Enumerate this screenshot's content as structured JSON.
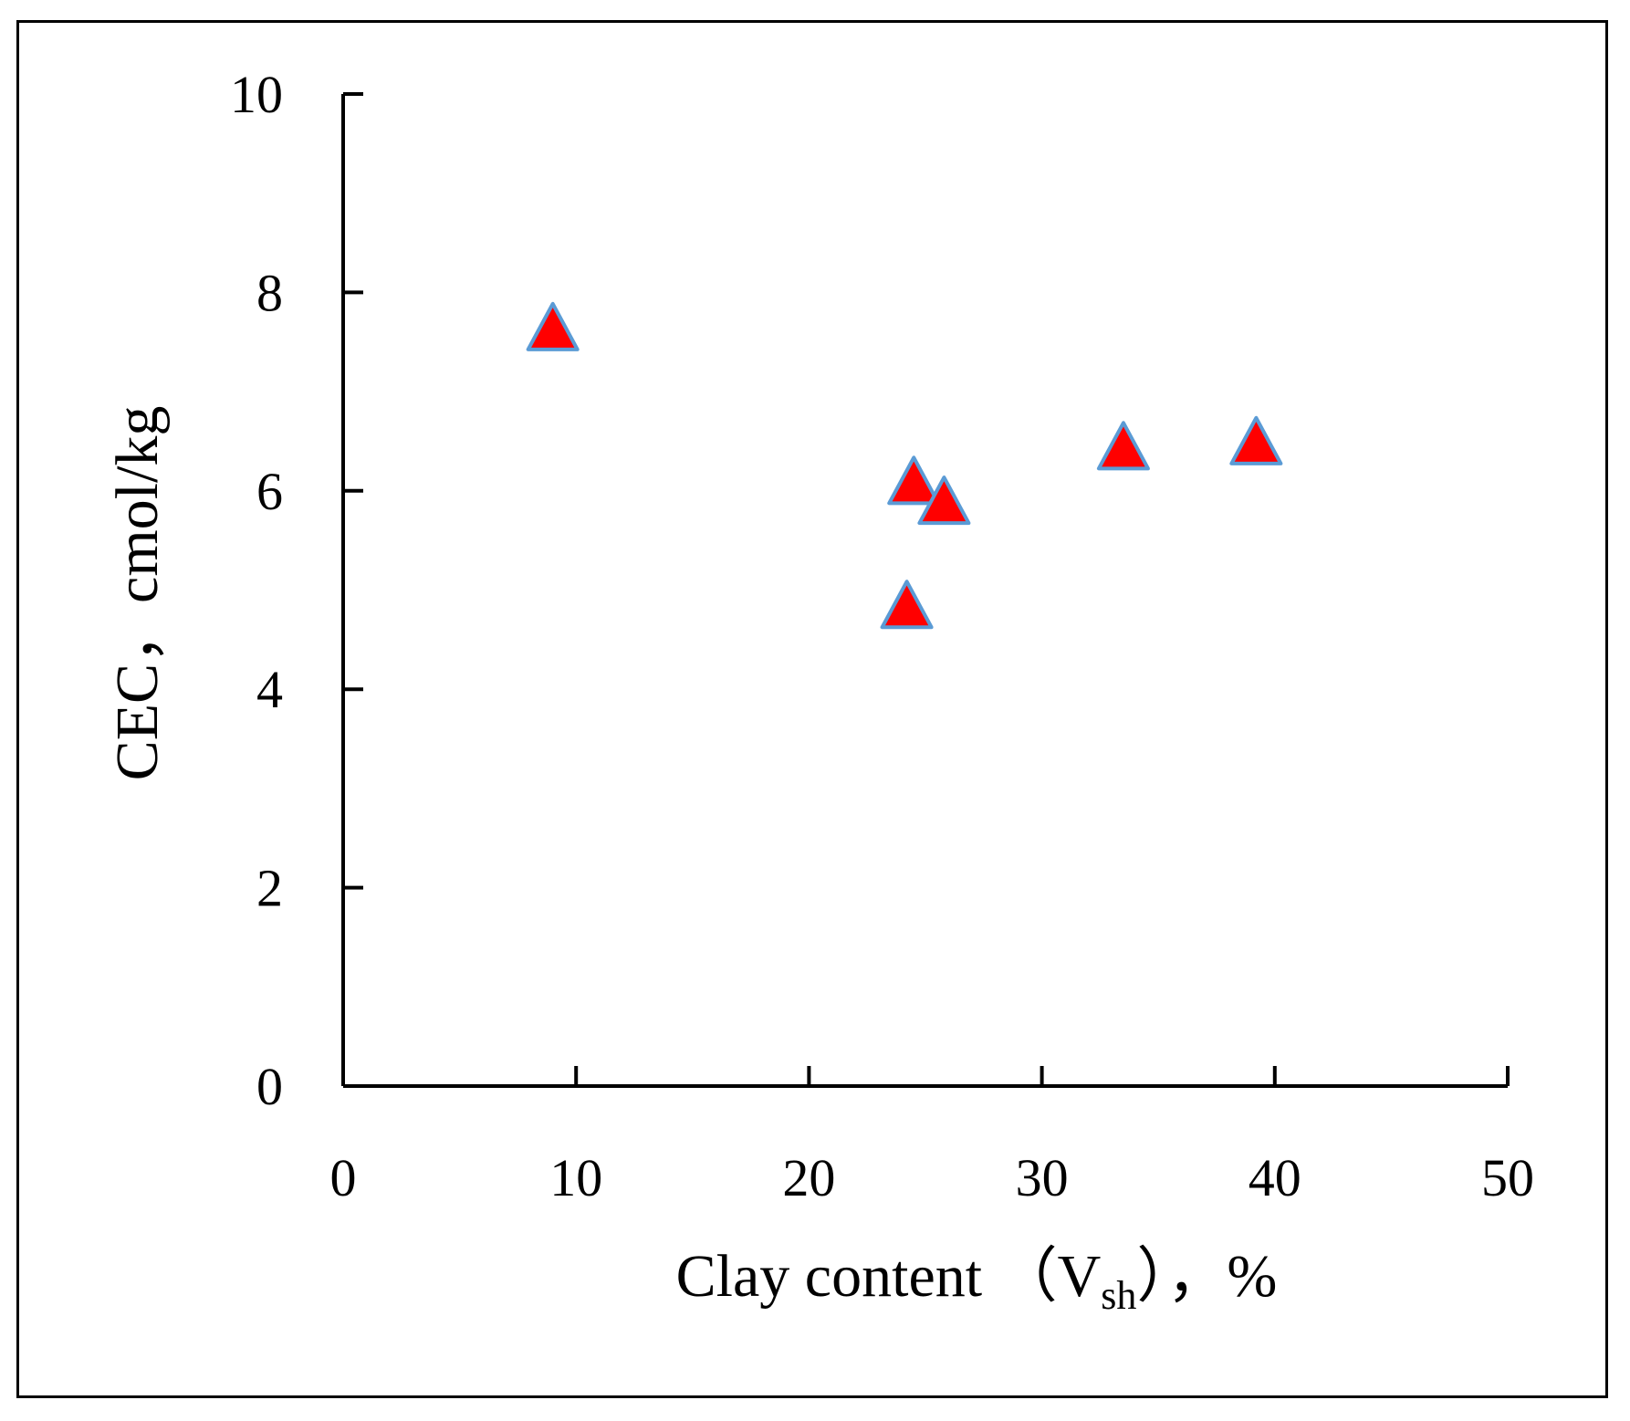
{
  "chart_data": {
    "type": "scatter",
    "xlabel": {
      "prefix": "Clay content （V",
      "subscript": "sh",
      "suffix": "），%"
    },
    "ylabel": "CEC，cmol/kg",
    "xlim": [
      0,
      50
    ],
    "ylim": [
      0,
      10
    ],
    "xticks": [
      0,
      10,
      20,
      30,
      40,
      50
    ],
    "yticks": [
      0,
      2,
      4,
      6,
      8,
      10
    ],
    "grid": false,
    "legend": "none",
    "marker": {
      "shape": "triangle",
      "fill": "#ff0000",
      "stroke": "#5b9bd5"
    },
    "points": [
      {
        "x": 9.0,
        "y": 7.6
      },
      {
        "x": 24.5,
        "y": 6.05
      },
      {
        "x": 25.8,
        "y": 5.85
      },
      {
        "x": 24.2,
        "y": 4.8
      },
      {
        "x": 33.5,
        "y": 6.4
      },
      {
        "x": 39.2,
        "y": 6.45
      }
    ]
  }
}
